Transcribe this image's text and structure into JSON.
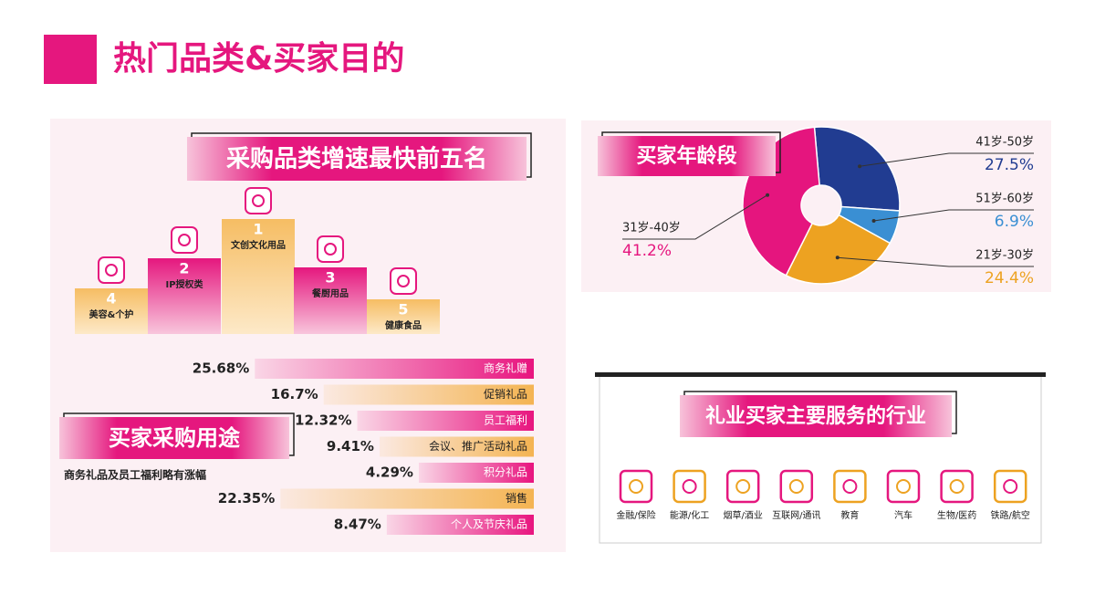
{
  "header": {
    "title": "热门品类&买家目的"
  },
  "podium": {
    "title": "采购品类增速最快前五名",
    "items": [
      {
        "rank": 4,
        "label": "美容&个护"
      },
      {
        "rank": 2,
        "label": "IP授权类"
      },
      {
        "rank": 1,
        "label": "文创文化用品"
      },
      {
        "rank": 3,
        "label": "餐厨用品"
      },
      {
        "rank": 5,
        "label": "健康食品"
      }
    ]
  },
  "chart_data": [
    {
      "type": "bar",
      "title": "买家采购用途",
      "subtitle": "商务礼品及员工福利略有涨幅",
      "categories": [
        "商务礼赠",
        "促销礼品",
        "员工福利",
        "会议、推广活动礼品",
        "积分礼品",
        "销售",
        "个人及节庆礼品"
      ],
      "values": [
        25.68,
        16.7,
        12.32,
        9.41,
        4.29,
        22.35,
        8.47
      ],
      "value_labels": [
        "25.68%",
        "16.7%",
        "12.32%",
        "9.41%",
        "4.29%",
        "22.35%",
        "8.47%"
      ],
      "colors": [
        "#e8157f",
        "#f4b452",
        "#e8157f",
        "#f4b452",
        "#e8157f",
        "#f4b452",
        "#e8157f"
      ]
    },
    {
      "type": "pie",
      "title": "买家年龄段",
      "categories": [
        "41岁-50岁",
        "51岁-60岁",
        "21岁-30岁",
        "31岁-40岁"
      ],
      "values": [
        27.5,
        6.9,
        24.4,
        41.2
      ],
      "value_labels": [
        "27.5%",
        "6.9%",
        "24.4%",
        "41.2%"
      ],
      "colors": [
        "#213c91",
        "#3a8fd3",
        "#eda221",
        "#e5157e"
      ]
    }
  ],
  "industries": {
    "title": "礼业买家主要服务的行业",
    "items": [
      "金融/保险",
      "能源/化工",
      "烟草/酒业",
      "互联网/通讯",
      "教育",
      "汽车",
      "生物/医药",
      "铁路/航空"
    ]
  }
}
